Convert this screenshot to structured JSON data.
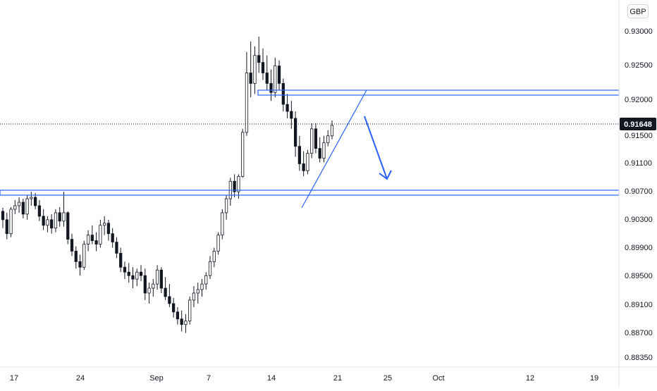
{
  "header": {
    "currency": "GBP"
  },
  "chart_data": {
    "type": "candlestick",
    "currency": "GBP",
    "y_ticks": [
      "0.93000",
      "0.92500",
      "0.92000",
      "0.91500",
      "0.91100",
      "0.90700",
      "0.90300",
      "0.89900",
      "0.89500",
      "0.89100",
      "0.88700",
      "0.88350"
    ],
    "x_ticks": [
      "17",
      "24",
      "Sep",
      "7",
      "14",
      "21",
      "25",
      "Oct",
      "12",
      "19"
    ],
    "last_price": {
      "label": "0.91648",
      "value": 0.91648
    },
    "colors": {
      "up": "#131722",
      "down": "#131722",
      "line": "#2962ff",
      "badge": "#131722",
      "grid": "#d1d4dc",
      "text": "#131722"
    },
    "candles": [
      [
        0.9042,
        0.9047,
        0.9018,
        0.903
      ],
      [
        0.903,
        0.904,
        0.9002,
        0.901
      ],
      [
        0.901,
        0.9048,
        0.9005,
        0.9045
      ],
      [
        0.9045,
        0.9058,
        0.9038,
        0.905
      ],
      [
        0.905,
        0.9062,
        0.904,
        0.9055
      ],
      [
        0.9055,
        0.906,
        0.9032,
        0.9038
      ],
      [
        0.9038,
        0.9065,
        0.903,
        0.906
      ],
      [
        0.906,
        0.907,
        0.905,
        0.9062
      ],
      [
        0.9062,
        0.9068,
        0.9045,
        0.905
      ],
      [
        0.905,
        0.9058,
        0.9028,
        0.9035
      ],
      [
        0.9035,
        0.9045,
        0.9015,
        0.9022
      ],
      [
        0.9022,
        0.9035,
        0.9012,
        0.903
      ],
      [
        0.903,
        0.9038,
        0.901,
        0.9018
      ],
      [
        0.9018,
        0.9045,
        0.9012,
        0.904
      ],
      [
        0.904,
        0.9048,
        0.902,
        0.9028
      ],
      [
        0.9028,
        0.907,
        0.902,
        0.904
      ],
      [
        0.904,
        0.9042,
        0.8995,
        0.9002
      ],
      [
        0.9002,
        0.901,
        0.8978,
        0.8985
      ],
      [
        0.8985,
        0.8992,
        0.896,
        0.897
      ],
      [
        0.897,
        0.898,
        0.895,
        0.8962
      ],
      [
        0.8962,
        0.9,
        0.8958,
        0.8995
      ],
      [
        0.8995,
        0.9015,
        0.8985,
        0.9008
      ],
      [
        0.9008,
        0.9022,
        0.8995,
        0.9
      ],
      [
        0.9,
        0.9012,
        0.8985,
        0.8995
      ],
      [
        0.8995,
        0.903,
        0.899,
        0.9022
      ],
      [
        0.9022,
        0.9035,
        0.9008,
        0.9025
      ],
      [
        0.9025,
        0.903,
        0.9,
        0.901
      ],
      [
        0.901,
        0.9018,
        0.899,
        0.8998
      ],
      [
        0.8998,
        0.9005,
        0.8975,
        0.8982
      ],
      [
        0.8982,
        0.899,
        0.8955,
        0.8962
      ],
      [
        0.8962,
        0.897,
        0.8945,
        0.8955
      ],
      [
        0.8955,
        0.8968,
        0.894,
        0.895
      ],
      [
        0.895,
        0.8962,
        0.8932,
        0.8945
      ],
      [
        0.8945,
        0.896,
        0.8935,
        0.8955
      ],
      [
        0.8955,
        0.8965,
        0.8942,
        0.895
      ],
      [
        0.895,
        0.896,
        0.8915,
        0.8925
      ],
      [
        0.8925,
        0.894,
        0.891,
        0.8932
      ],
      [
        0.8932,
        0.8945,
        0.892,
        0.8938
      ],
      [
        0.8938,
        0.8965,
        0.893,
        0.8958
      ],
      [
        0.8958,
        0.8962,
        0.8925,
        0.8932
      ],
      [
        0.8932,
        0.8948,
        0.8915,
        0.892
      ],
      [
        0.892,
        0.8938,
        0.8905,
        0.891
      ],
      [
        0.891,
        0.8918,
        0.889,
        0.8898
      ],
      [
        0.8898,
        0.8905,
        0.888,
        0.8888
      ],
      [
        0.8888,
        0.89,
        0.887,
        0.888
      ],
      [
        0.888,
        0.8895,
        0.8868,
        0.8885
      ],
      [
        0.8885,
        0.892,
        0.888,
        0.8915
      ],
      [
        0.8915,
        0.8935,
        0.8905,
        0.8925
      ],
      [
        0.8925,
        0.894,
        0.891,
        0.893
      ],
      [
        0.893,
        0.8945,
        0.892,
        0.8938
      ],
      [
        0.8938,
        0.8955,
        0.893,
        0.895
      ],
      [
        0.895,
        0.8978,
        0.8945,
        0.897
      ],
      [
        0.897,
        0.899,
        0.8962,
        0.8985
      ],
      [
        0.8985,
        0.9012,
        0.898,
        0.9008
      ],
      [
        0.9008,
        0.9045,
        0.9002,
        0.904
      ],
      [
        0.904,
        0.9065,
        0.903,
        0.906
      ],
      [
        0.906,
        0.909,
        0.905,
        0.9085
      ],
      [
        0.9085,
        0.9095,
        0.9062,
        0.907
      ],
      [
        0.907,
        0.9095,
        0.906,
        0.9092
      ],
      [
        0.9092,
        0.916,
        0.909,
        0.9155
      ],
      [
        0.9155,
        0.927,
        0.915,
        0.924
      ],
      [
        0.924,
        0.9285,
        0.9205,
        0.9225
      ],
      [
        0.9225,
        0.9278,
        0.921,
        0.9265
      ],
      [
        0.9265,
        0.9292,
        0.924,
        0.9255
      ],
      [
        0.9255,
        0.9275,
        0.923,
        0.924
      ],
      [
        0.924,
        0.9265,
        0.9215,
        0.9225
      ],
      [
        0.9225,
        0.9245,
        0.92,
        0.9212
      ],
      [
        0.9212,
        0.9262,
        0.9205,
        0.925
      ],
      [
        0.925,
        0.9258,
        0.9215,
        0.9225
      ],
      [
        0.9225,
        0.9232,
        0.9185,
        0.9195
      ],
      [
        0.9195,
        0.921,
        0.9175,
        0.9185
      ],
      [
        0.9185,
        0.92,
        0.916,
        0.9175
      ],
      [
        0.9175,
        0.9185,
        0.912,
        0.9135
      ],
      [
        0.9135,
        0.915,
        0.91,
        0.911
      ],
      [
        0.911,
        0.9128,
        0.9092,
        0.91
      ],
      [
        0.91,
        0.913,
        0.9095,
        0.9125
      ],
      [
        0.9125,
        0.9168,
        0.9118,
        0.916
      ],
      [
        0.916,
        0.9168,
        0.9125,
        0.9132
      ],
      [
        0.9132,
        0.9148,
        0.9112,
        0.9118
      ],
      [
        0.9118,
        0.915,
        0.9112,
        0.914
      ],
      [
        0.914,
        0.9158,
        0.9135,
        0.915
      ],
      [
        0.915,
        0.9172,
        0.9145,
        0.9165
      ]
    ]
  }
}
